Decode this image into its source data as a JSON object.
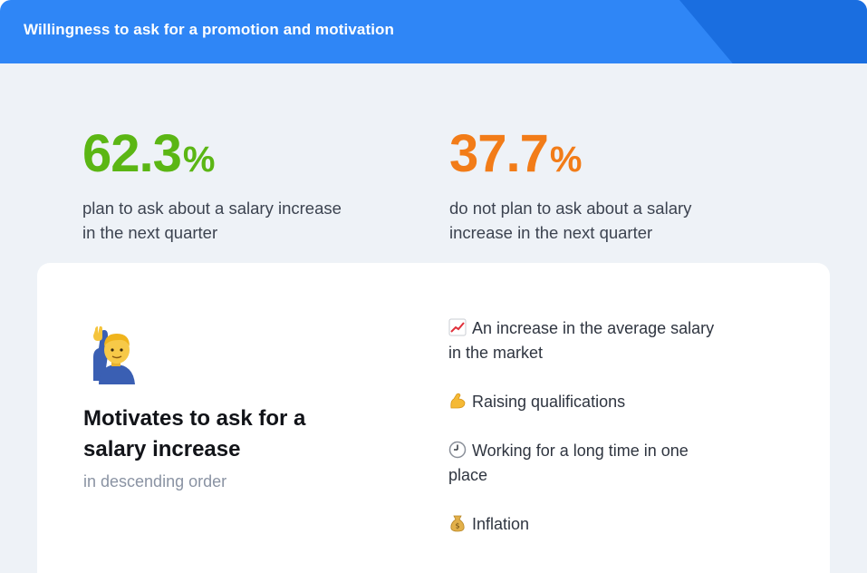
{
  "header": {
    "title": "Willingness to ask for a promotion and motivation"
  },
  "stats": [
    {
      "value": "62.3",
      "unit": "%",
      "caption": "plan to ask about a salary increase in the next quarter",
      "color": "#5bb614"
    },
    {
      "value": "37.7",
      "unit": "%",
      "caption": "do not plan to ask about a salary increase in the next quarter",
      "color": "#f27c18"
    }
  ],
  "panel": {
    "emoji": "person-raising-hand",
    "title": "Motivates to ask for a salary increase",
    "subtitle": "in descending order",
    "motivations": [
      {
        "icon": "chart-increasing-icon",
        "text": "An increase in the average salary in the market"
      },
      {
        "icon": "flexed-biceps-icon",
        "text": "Raising qualifications"
      },
      {
        "icon": "clock-icon",
        "text": "Working for a long time in one place"
      },
      {
        "icon": "money-bag-icon",
        "text": "Inflation"
      }
    ]
  },
  "colors": {
    "header_bg": "#2f86f6",
    "header_accent": "#1a6ee0",
    "page_bg": "#eef2f7"
  }
}
